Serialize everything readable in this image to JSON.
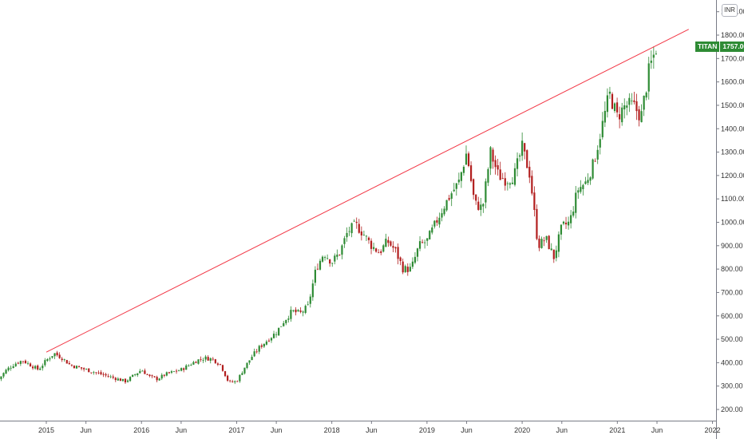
{
  "chart_data": {
    "type": "candlestick",
    "symbol": "TITAN",
    "currency": "INR",
    "last_price": "1757.00",
    "up_color": "#2e8b34",
    "down_color": "#b21e1e",
    "trendline_color": "#f23645",
    "y_axis": {
      "ylim": [
        170,
        1890
      ],
      "ticks": [
        "1900.00",
        "1800.00",
        "1700.00",
        "1600.00",
        "1500.00",
        "1400.00",
        "1300.00",
        "1200.00",
        "1100.00",
        "1000.00",
        "900.00",
        "800.00",
        "700.00",
        "600.00",
        "500.00",
        "400.00",
        "300.00",
        "200.00"
      ],
      "position": "right"
    },
    "x_axis": {
      "labels": [
        "2015",
        "Jun",
        "2016",
        "Jun",
        "2017",
        "Jun",
        "2018",
        "Jun",
        "2019",
        "Jun",
        "2020",
        "Jun",
        "2021",
        "Jun",
        "2022"
      ]
    },
    "trendline": {
      "from": [
        "2015-01",
        445
      ],
      "to": [
        "2021-10",
        1825
      ]
    },
    "weekly_close_path": [
      [
        "2014-07",
        330
      ],
      [
        "2014-08",
        370
      ],
      [
        "2014-09",
        395
      ],
      [
        "2014-10",
        410
      ],
      [
        "2014-11",
        390
      ],
      [
        "2014-12",
        370
      ],
      [
        "2015-01",
        410
      ],
      [
        "2015-02",
        440
      ],
      [
        "2015-03",
        420
      ],
      [
        "2015-04",
        390
      ],
      [
        "2015-05",
        380
      ],
      [
        "2015-06",
        370
      ],
      [
        "2015-07",
        360
      ],
      [
        "2015-08",
        350
      ],
      [
        "2015-09",
        340
      ],
      [
        "2015-10",
        330
      ],
      [
        "2015-11",
        320
      ],
      [
        "2015-12",
        345
      ],
      [
        "2016-01",
        370
      ],
      [
        "2016-02",
        340
      ],
      [
        "2016-03",
        330
      ],
      [
        "2016-04",
        350
      ],
      [
        "2016-05",
        360
      ],
      [
        "2016-06",
        370
      ],
      [
        "2016-07",
        390
      ],
      [
        "2016-08",
        410
      ],
      [
        "2016-09",
        420
      ],
      [
        "2016-10",
        415
      ],
      [
        "2016-11",
        390
      ],
      [
        "2016-12",
        315
      ],
      [
        "2017-01",
        320
      ],
      [
        "2017-02",
        380
      ],
      [
        "2017-03",
        430
      ],
      [
        "2017-04",
        470
      ],
      [
        "2017-05",
        500
      ],
      [
        "2017-06",
        530
      ],
      [
        "2017-07",
        580
      ],
      [
        "2017-08",
        620
      ],
      [
        "2017-09",
        610
      ],
      [
        "2017-10",
        640
      ],
      [
        "2017-11",
        800
      ],
      [
        "2017-12",
        870
      ],
      [
        "2018-01",
        830
      ],
      [
        "2018-02",
        870
      ],
      [
        "2018-03",
        960
      ],
      [
        "2018-04",
        990
      ],
      [
        "2018-05",
        950
      ],
      [
        "2018-06",
        900
      ],
      [
        "2018-07",
        870
      ],
      [
        "2018-08",
        920
      ],
      [
        "2018-09",
        880
      ],
      [
        "2018-10",
        800
      ],
      [
        "2018-11",
        800
      ],
      [
        "2018-12",
        900
      ],
      [
        "2019-01",
        920
      ],
      [
        "2019-02",
        990
      ],
      [
        "2019-03",
        1060
      ],
      [
        "2019-04",
        1120
      ],
      [
        "2019-05",
        1170
      ],
      [
        "2019-06",
        1300
      ],
      [
        "2019-07",
        1080
      ],
      [
        "2019-08",
        1060
      ],
      [
        "2019-09",
        1300
      ],
      [
        "2019-10",
        1200
      ],
      [
        "2019-11",
        1180
      ],
      [
        "2019-12",
        1200
      ],
      [
        "2020-01",
        1320
      ],
      [
        "2020-02",
        1200
      ],
      [
        "2020-03",
        900
      ],
      [
        "2020-04",
        930
      ],
      [
        "2020-05",
        850
      ],
      [
        "2020-06",
        980
      ],
      [
        "2020-07",
        1000
      ],
      [
        "2020-08",
        1140
      ],
      [
        "2020-09",
        1170
      ],
      [
        "2020-10",
        1250
      ],
      [
        "2020-11",
        1400
      ],
      [
        "2020-12",
        1550
      ],
      [
        "2021-01",
        1450
      ],
      [
        "2021-02",
        1500
      ],
      [
        "2021-03",
        1500
      ],
      [
        "2021-04",
        1450
      ],
      [
        "2021-05",
        1650
      ],
      [
        "2021-06",
        1757
      ]
    ]
  }
}
